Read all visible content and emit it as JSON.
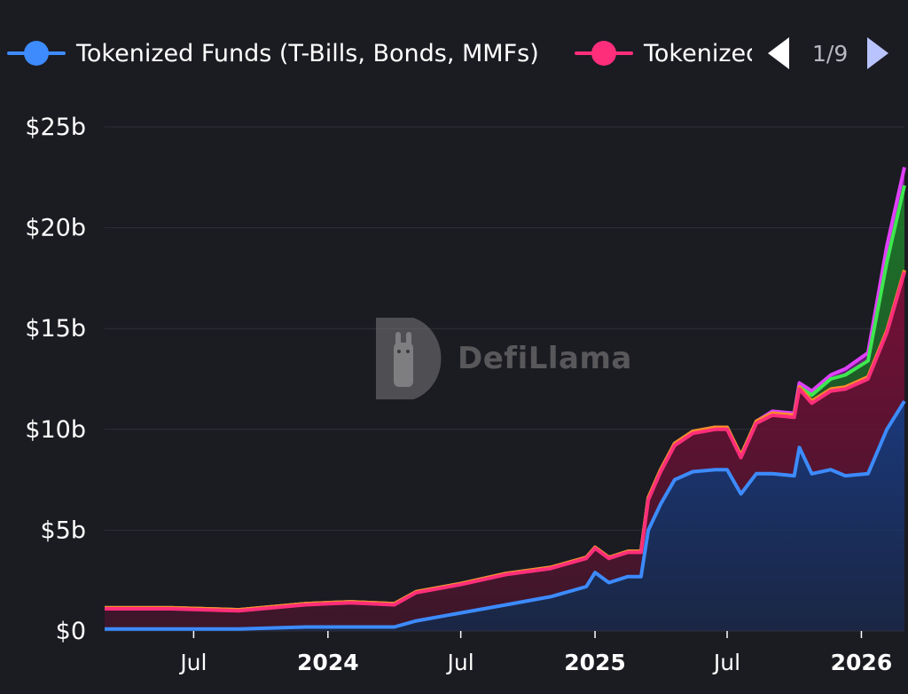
{
  "legend": {
    "items": [
      {
        "label": "Tokenized Funds (T-Bills, Bonds, MMFs)",
        "color": "#3d8bfd"
      },
      {
        "label": "Tokenized",
        "color": "#ff2e7a"
      }
    ],
    "pager": "1/9"
  },
  "watermark": "DefiLlama",
  "chart_data": {
    "type": "area",
    "stacked": true,
    "ylim": [
      0,
      25
    ],
    "yticks": [
      "$0",
      "$5b",
      "$10b",
      "$15b",
      "$20b",
      "$25b"
    ],
    "ytick_values": [
      0,
      5,
      10,
      15,
      20,
      25
    ],
    "xticks": [
      {
        "label": "Jul",
        "date": "2023-07-01",
        "bold": false
      },
      {
        "label": "2024",
        "date": "2024-01-01",
        "bold": true
      },
      {
        "label": "Jul",
        "date": "2024-07-01",
        "bold": false
      },
      {
        "label": "2025",
        "date": "2025-01-01",
        "bold": true
      },
      {
        "label": "Jul",
        "date": "2025-07-01",
        "bold": false
      },
      {
        "label": "2026",
        "date": "2026-01-01",
        "bold": true
      }
    ],
    "xlim": [
      "2023-03-01",
      "2026-03-01"
    ],
    "grid": true,
    "legend_position": "top",
    "series": [
      {
        "name": "Tokenized Funds (T-Bills, Bonds, MMFs)",
        "color": "#3d8bfd",
        "fill": "#1a3a80",
        "points": [
          [
            "2023-03-01",
            0.1
          ],
          [
            "2023-06-01",
            0.1
          ],
          [
            "2023-09-01",
            0.1
          ],
          [
            "2023-12-01",
            0.2
          ],
          [
            "2024-02-01",
            0.2
          ],
          [
            "2024-04-01",
            0.2
          ],
          [
            "2024-05-01",
            0.5
          ],
          [
            "2024-07-01",
            0.9
          ],
          [
            "2024-09-01",
            1.3
          ],
          [
            "2024-11-01",
            1.7
          ],
          [
            "2024-12-20",
            2.2
          ],
          [
            "2025-01-01",
            2.9
          ],
          [
            "2025-01-20",
            2.4
          ],
          [
            "2025-02-15",
            2.7
          ],
          [
            "2025-03-05",
            2.7
          ],
          [
            "2025-03-15",
            5.0
          ],
          [
            "2025-04-01",
            6.3
          ],
          [
            "2025-04-20",
            7.5
          ],
          [
            "2025-05-15",
            7.9
          ],
          [
            "2025-06-15",
            8.0
          ],
          [
            "2025-07-01",
            8.0
          ],
          [
            "2025-07-20",
            6.8
          ],
          [
            "2025-08-10",
            7.8
          ],
          [
            "2025-09-01",
            7.8
          ],
          [
            "2025-10-01",
            7.7
          ],
          [
            "2025-10-08",
            9.1
          ],
          [
            "2025-10-25",
            7.8
          ],
          [
            "2025-11-20",
            8.0
          ],
          [
            "2025-12-10",
            7.7
          ],
          [
            "2026-01-10",
            7.8
          ],
          [
            "2026-02-05",
            10.0
          ],
          [
            "2026-03-01",
            11.4
          ]
        ]
      },
      {
        "name": "Tokenized",
        "color": "#ff2e7a",
        "fill": "#7a0f38",
        "points": [
          [
            "2023-03-01",
            1.0
          ],
          [
            "2023-06-01",
            1.0
          ],
          [
            "2023-09-01",
            0.9
          ],
          [
            "2023-12-01",
            1.1
          ],
          [
            "2024-02-01",
            1.2
          ],
          [
            "2024-04-01",
            1.1
          ],
          [
            "2024-05-01",
            1.4
          ],
          [
            "2024-07-01",
            1.4
          ],
          [
            "2024-09-01",
            1.5
          ],
          [
            "2024-11-01",
            1.4
          ],
          [
            "2024-12-20",
            1.4
          ],
          [
            "2025-01-01",
            1.2
          ],
          [
            "2025-01-20",
            1.2
          ],
          [
            "2025-02-15",
            1.2
          ],
          [
            "2025-03-05",
            1.2
          ],
          [
            "2025-03-15",
            1.5
          ],
          [
            "2025-04-01",
            1.6
          ],
          [
            "2025-04-20",
            1.7
          ],
          [
            "2025-05-15",
            1.9
          ],
          [
            "2025-06-15",
            2.0
          ],
          [
            "2025-07-01",
            2.0
          ],
          [
            "2025-07-20",
            1.8
          ],
          [
            "2025-08-10",
            2.5
          ],
          [
            "2025-09-01",
            2.9
          ],
          [
            "2025-10-01",
            2.9
          ],
          [
            "2025-10-08",
            2.9
          ],
          [
            "2025-10-25",
            3.5
          ],
          [
            "2025-11-20",
            3.9
          ],
          [
            "2025-12-10",
            4.3
          ],
          [
            "2026-01-10",
            4.7
          ],
          [
            "2026-02-05",
            4.8
          ],
          [
            "2026-03-01",
            6.4
          ]
        ]
      },
      {
        "name": "",
        "color": "#ff8a2a",
        "fill": "#6b3a1a",
        "points": [
          [
            "2023-03-01",
            0.05
          ],
          [
            "2023-06-01",
            0.05
          ],
          [
            "2023-09-01",
            0.05
          ],
          [
            "2023-12-01",
            0.05
          ],
          [
            "2024-02-01",
            0.05
          ],
          [
            "2024-04-01",
            0.05
          ],
          [
            "2024-05-01",
            0.05
          ],
          [
            "2024-07-01",
            0.05
          ],
          [
            "2024-09-01",
            0.05
          ],
          [
            "2024-11-01",
            0.05
          ],
          [
            "2024-12-20",
            0.05
          ],
          [
            "2025-01-01",
            0.05
          ],
          [
            "2025-01-20",
            0.05
          ],
          [
            "2025-02-15",
            0.05
          ],
          [
            "2025-03-05",
            0.05
          ],
          [
            "2025-03-15",
            0.1
          ],
          [
            "2025-04-01",
            0.1
          ],
          [
            "2025-04-20",
            0.1
          ],
          [
            "2025-05-15",
            0.1
          ],
          [
            "2025-06-15",
            0.1
          ],
          [
            "2025-07-01",
            0.1
          ],
          [
            "2025-07-20",
            0.1
          ],
          [
            "2025-08-10",
            0.1
          ],
          [
            "2025-09-01",
            0.1
          ],
          [
            "2025-10-01",
            0.1
          ],
          [
            "2025-10-08",
            0.1
          ],
          [
            "2025-10-25",
            0.1
          ],
          [
            "2025-11-20",
            0.1
          ],
          [
            "2025-12-10",
            0.1
          ],
          [
            "2026-01-10",
            0.1
          ],
          [
            "2026-02-05",
            0.1
          ],
          [
            "2026-03-01",
            0.1
          ]
        ]
      },
      {
        "name": "",
        "color": "#3ee84f",
        "fill": "#1f7a2a",
        "points": [
          [
            "2023-03-01",
            0
          ],
          [
            "2023-06-01",
            0
          ],
          [
            "2023-09-01",
            0
          ],
          [
            "2023-12-01",
            0
          ],
          [
            "2024-02-01",
            0
          ],
          [
            "2024-04-01",
            0
          ],
          [
            "2024-05-01",
            0
          ],
          [
            "2024-07-01",
            0
          ],
          [
            "2024-09-01",
            0
          ],
          [
            "2024-11-01",
            0
          ],
          [
            "2024-12-20",
            0
          ],
          [
            "2025-01-01",
            0
          ],
          [
            "2025-01-20",
            0
          ],
          [
            "2025-02-15",
            0
          ],
          [
            "2025-03-05",
            0
          ],
          [
            "2025-03-15",
            0
          ],
          [
            "2025-04-01",
            0
          ],
          [
            "2025-04-20",
            0
          ],
          [
            "2025-05-15",
            0
          ],
          [
            "2025-06-15",
            0
          ],
          [
            "2025-07-01",
            0
          ],
          [
            "2025-07-20",
            0
          ],
          [
            "2025-08-10",
            0
          ],
          [
            "2025-09-01",
            0
          ],
          [
            "2025-10-01",
            0
          ],
          [
            "2025-10-08",
            0
          ],
          [
            "2025-10-25",
            0.3
          ],
          [
            "2025-11-20",
            0.5
          ],
          [
            "2025-12-10",
            0.6
          ],
          [
            "2026-01-10",
            0.8
          ],
          [
            "2026-02-05",
            3.4
          ],
          [
            "2026-03-01",
            4.2
          ]
        ]
      },
      {
        "name": "",
        "color": "#e040fb",
        "fill": "#8a1f9e",
        "points": [
          [
            "2023-03-01",
            0
          ],
          [
            "2023-06-01",
            0
          ],
          [
            "2023-09-01",
            0
          ],
          [
            "2023-12-01",
            0
          ],
          [
            "2024-02-01",
            0
          ],
          [
            "2024-04-01",
            0
          ],
          [
            "2024-05-01",
            0
          ],
          [
            "2024-07-01",
            0
          ],
          [
            "2024-09-01",
            0
          ],
          [
            "2024-11-01",
            0
          ],
          [
            "2024-12-20",
            0
          ],
          [
            "2025-01-01",
            0
          ],
          [
            "2025-01-20",
            0
          ],
          [
            "2025-02-15",
            0
          ],
          [
            "2025-03-05",
            0
          ],
          [
            "2025-03-15",
            0
          ],
          [
            "2025-04-01",
            0
          ],
          [
            "2025-04-20",
            0
          ],
          [
            "2025-05-15",
            0
          ],
          [
            "2025-06-15",
            0
          ],
          [
            "2025-07-01",
            0
          ],
          [
            "2025-07-20",
            0
          ],
          [
            "2025-08-10",
            0
          ],
          [
            "2025-09-01",
            0.1
          ],
          [
            "2025-10-01",
            0.1
          ],
          [
            "2025-10-08",
            0.2
          ],
          [
            "2025-10-25",
            0.2
          ],
          [
            "2025-11-20",
            0.2
          ],
          [
            "2025-12-10",
            0.3
          ],
          [
            "2026-01-10",
            0.4
          ],
          [
            "2026-02-05",
            0.8
          ],
          [
            "2026-03-01",
            0.9
          ]
        ]
      }
    ]
  }
}
